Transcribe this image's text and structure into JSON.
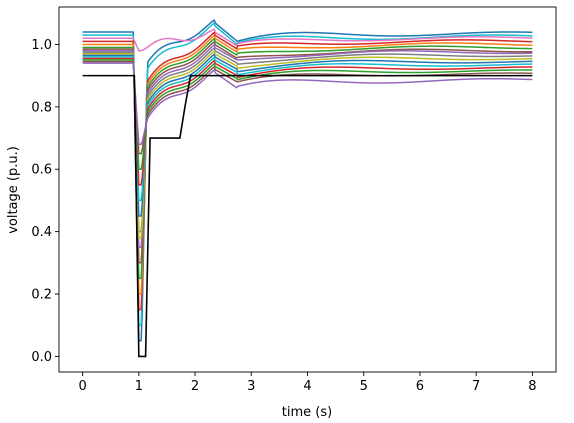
{
  "chart_data": {
    "type": "line",
    "title": "",
    "xlabel": "time (s)",
    "ylabel": "voltage (p.u.)",
    "xlim": [
      -0.42,
      8.42
    ],
    "ylim": [
      -0.05,
      1.12
    ],
    "xticks": [
      0,
      1,
      2,
      3,
      4,
      5,
      6,
      7,
      8
    ],
    "yticks": [
      0.0,
      0.2,
      0.4,
      0.6,
      0.8,
      1.0
    ],
    "ytick_labels": [
      "0.0",
      "0.2",
      "0.4",
      "0.6",
      "0.8",
      "1.0"
    ],
    "grid": false,
    "legend": "none",
    "threshold": {
      "color": "#000000",
      "x": [
        0,
        0.92,
        1.0,
        1.12,
        1.2,
        1.73,
        1.82,
        1.92,
        8
      ],
      "y": [
        0.9,
        0.9,
        0.0,
        0.0,
        0.7,
        0.7,
        0.8,
        0.9,
        0.9
      ]
    },
    "series": [
      {
        "color": "#1f77b4",
        "pre": 1.04,
        "dip": 0.05,
        "rec": 0.94,
        "peak": 1.07,
        "final": 1.035,
        "osc": 0.012
      },
      {
        "color": "#17becf",
        "pre": 1.03,
        "dip": 0.1,
        "rec": 0.92,
        "peak": 1.06,
        "final": 1.025,
        "osc": 0.012
      },
      {
        "color": "#e377c2",
        "pre": 1.02,
        "dip": 0.98,
        "rec": 0.99,
        "peak": 1.04,
        "final": 1.02,
        "osc": 0.01
      },
      {
        "color": "#d62728",
        "pre": 1.01,
        "dip": 0.15,
        "rec": 0.88,
        "peak": 1.03,
        "final": 1.01,
        "osc": 0.01
      },
      {
        "color": "#ff7f0e",
        "pre": 1.0,
        "dip": 0.2,
        "rec": 0.87,
        "peak": 1.02,
        "final": 1.0,
        "osc": 0.01
      },
      {
        "color": "#2ca02c",
        "pre": 0.99,
        "dip": 0.25,
        "rec": 0.86,
        "peak": 1.01,
        "final": 0.99,
        "osc": 0.009
      },
      {
        "color": "#8c564b",
        "pre": 0.985,
        "dip": 0.3,
        "rec": 0.85,
        "peak": 1.0,
        "final": 0.98,
        "osc": 0.009
      },
      {
        "color": "#9467bd",
        "pre": 0.98,
        "dip": 0.35,
        "rec": 0.84,
        "peak": 0.99,
        "final": 0.975,
        "osc": 0.009
      },
      {
        "color": "#7f7f7f",
        "pre": 0.975,
        "dip": 0.4,
        "rec": 0.83,
        "peak": 0.98,
        "final": 0.965,
        "osc": 0.008
      },
      {
        "color": "#bcbd22",
        "pre": 0.97,
        "dip": 0.38,
        "rec": 0.82,
        "peak": 0.97,
        "final": 0.955,
        "osc": 0.008
      },
      {
        "color": "#1f77b4",
        "pre": 0.965,
        "dip": 0.45,
        "rec": 0.81,
        "peak": 0.96,
        "final": 0.945,
        "osc": 0.008
      },
      {
        "color": "#17becf",
        "pre": 0.96,
        "dip": 0.5,
        "rec": 0.8,
        "peak": 0.95,
        "final": 0.935,
        "osc": 0.008
      },
      {
        "color": "#d62728",
        "pre": 0.955,
        "dip": 0.55,
        "rec": 0.79,
        "peak": 0.94,
        "final": 0.925,
        "osc": 0.008
      },
      {
        "color": "#2ca02c",
        "pre": 0.95,
        "dip": 0.6,
        "rec": 0.78,
        "peak": 0.93,
        "final": 0.915,
        "osc": 0.008
      },
      {
        "color": "#8c564b",
        "pre": 0.945,
        "dip": 0.65,
        "rec": 0.77,
        "peak": 0.92,
        "final": 0.905,
        "osc": 0.008
      },
      {
        "color": "#9467bd",
        "pre": 0.94,
        "dip": 0.68,
        "rec": 0.76,
        "peak": 0.91,
        "final": 0.885,
        "osc": 0.012
      }
    ]
  }
}
